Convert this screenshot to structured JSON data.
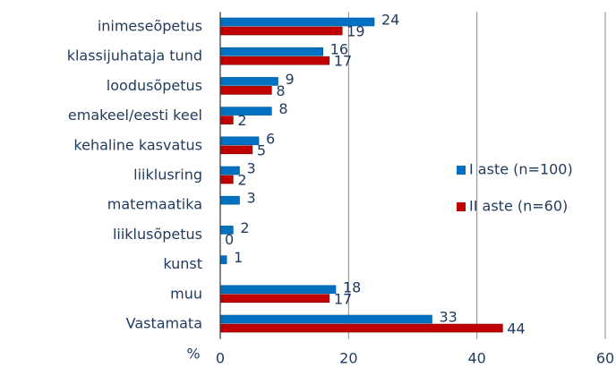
{
  "chart_data": {
    "type": "hbar",
    "categories": [
      "inimeseõpetus",
      "klassijuhataja tund",
      "loodusõpetus",
      "emakeel/eesti keel",
      "kehaline kasvatus",
      "liiklusring",
      "matemaatika",
      "liiklusõpetus",
      "kunst",
      "muu",
      "Vastamata"
    ],
    "series": [
      {
        "name": "I aste (n=100)",
        "color": "#0070c0",
        "values": [
          24,
          16,
          9,
          8,
          6,
          3,
          3,
          2,
          1,
          18,
          33
        ]
      },
      {
        "name": "II aste (n=60)",
        "color": "#c00000",
        "values": [
          19,
          17,
          8,
          2,
          5,
          2,
          null,
          0,
          null,
          17,
          44
        ]
      }
    ],
    "x_label": "%",
    "xlim": [
      0,
      60
    ],
    "xticks": [
      0,
      20,
      40,
      60
    ],
    "grid": true,
    "legend": "right"
  }
}
